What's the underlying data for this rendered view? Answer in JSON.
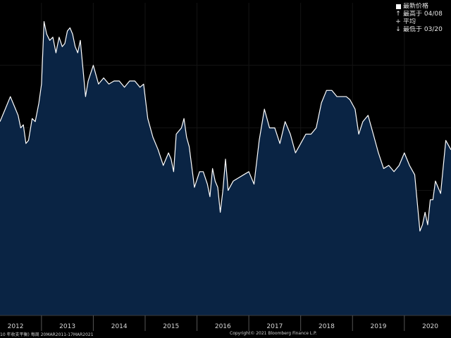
{
  "chart_data": {
    "type": "area",
    "title": "",
    "xlabel": "",
    "ylabel": "",
    "x_tick_labels": [
      "2012",
      "2013",
      "2014",
      "2015",
      "2016",
      "2017",
      "2018",
      "2019",
      "2020"
    ],
    "y_range": [
      0,
      100
    ],
    "grid": true,
    "colors": {
      "background": "#000000",
      "area_fill": "#0a2444",
      "line": "#ffffff",
      "grid": "#141414"
    },
    "legend_position": "top-right",
    "legend": [
      {
        "marker": "square",
        "text": "最新价格"
      },
      {
        "marker": "↑",
        "text": "最高于 04/08"
      },
      {
        "marker": "+",
        "text": "平均"
      },
      {
        "marker": "↓",
        "text": "最低于 03/20"
      }
    ],
    "series": [
      {
        "x": [
          2011.7,
          2011.8,
          2011.9,
          2012.0,
          2012.05,
          2012.1,
          2012.15,
          2012.2,
          2012.25,
          2012.32,
          2012.38,
          2012.45,
          2012.5,
          2012.55,
          2012.6,
          2012.66,
          2012.72,
          2012.78,
          2012.84,
          2012.9,
          2012.95,
          2013.0,
          2013.05,
          2013.1,
          2013.15,
          2013.2,
          2013.25,
          2013.3,
          2013.35,
          2013.4,
          2013.5,
          2013.6,
          2013.7,
          2013.8,
          2013.9,
          2014.0,
          2014.1,
          2014.2,
          2014.3,
          2014.4,
          2014.47,
          2014.55,
          2014.65,
          2014.75,
          2014.85,
          2014.95,
          2015.0,
          2015.05,
          2015.1,
          2015.2,
          2015.25,
          2015.3,
          2015.35,
          2015.45,
          2015.55,
          2015.62,
          2015.7,
          2015.75,
          2015.8,
          2015.85,
          2015.9,
          2015.95,
          2016.0,
          2016.05,
          2016.1,
          2016.2,
          2016.3,
          2016.4,
          2016.5,
          2016.6,
          2016.7,
          2016.8,
          2016.9,
          2017.0,
          2017.1,
          2017.2,
          2017.3,
          2017.4,
          2017.5,
          2017.6,
          2017.7,
          2017.8,
          2017.9,
          2018.0,
          2018.1,
          2018.2,
          2018.3,
          2018.38,
          2018.45,
          2018.55,
          2018.62,
          2018.7,
          2018.8,
          2018.9,
          2019.0,
          2019.1,
          2019.2,
          2019.3,
          2019.4,
          2019.5,
          2019.6,
          2019.7,
          2019.75,
          2019.8,
          2019.85,
          2019.9,
          2019.95,
          2020.0,
          2020.05,
          2020.1,
          2020.2,
          2020.3,
          2020.4
        ],
        "values": [
          62,
          66,
          70,
          66,
          64,
          60,
          61,
          55,
          56,
          63,
          62,
          68,
          74,
          94,
          90,
          88,
          89,
          84,
          89,
          86,
          87,
          91,
          92,
          90,
          86,
          84,
          88,
          79,
          70,
          75,
          80,
          74,
          76,
          74,
          75,
          75,
          73,
          75,
          75,
          73,
          74,
          63,
          57,
          53,
          48,
          52,
          50,
          46,
          58,
          60,
          63,
          57,
          54,
          41,
          46,
          46,
          42,
          38,
          47,
          43,
          41,
          33,
          40,
          50,
          40,
          43,
          44,
          45,
          46,
          42,
          56,
          66,
          60,
          60,
          55,
          62,
          58,
          52,
          55,
          58,
          58,
          60,
          68,
          72,
          72,
          70,
          70,
          70,
          69,
          66,
          58,
          62,
          64,
          58,
          52,
          47,
          48,
          46,
          48,
          52,
          48,
          45,
          36,
          27,
          29,
          33,
          29,
          37,
          37,
          43,
          39,
          56,
          53
        ]
      }
    ]
  },
  "footer": {
    "left": "10 年收支平衡)  每周 20MAR2011-17MAR2021",
    "right": "Copyright© 2021 Bloomberg Finance L.P."
  }
}
